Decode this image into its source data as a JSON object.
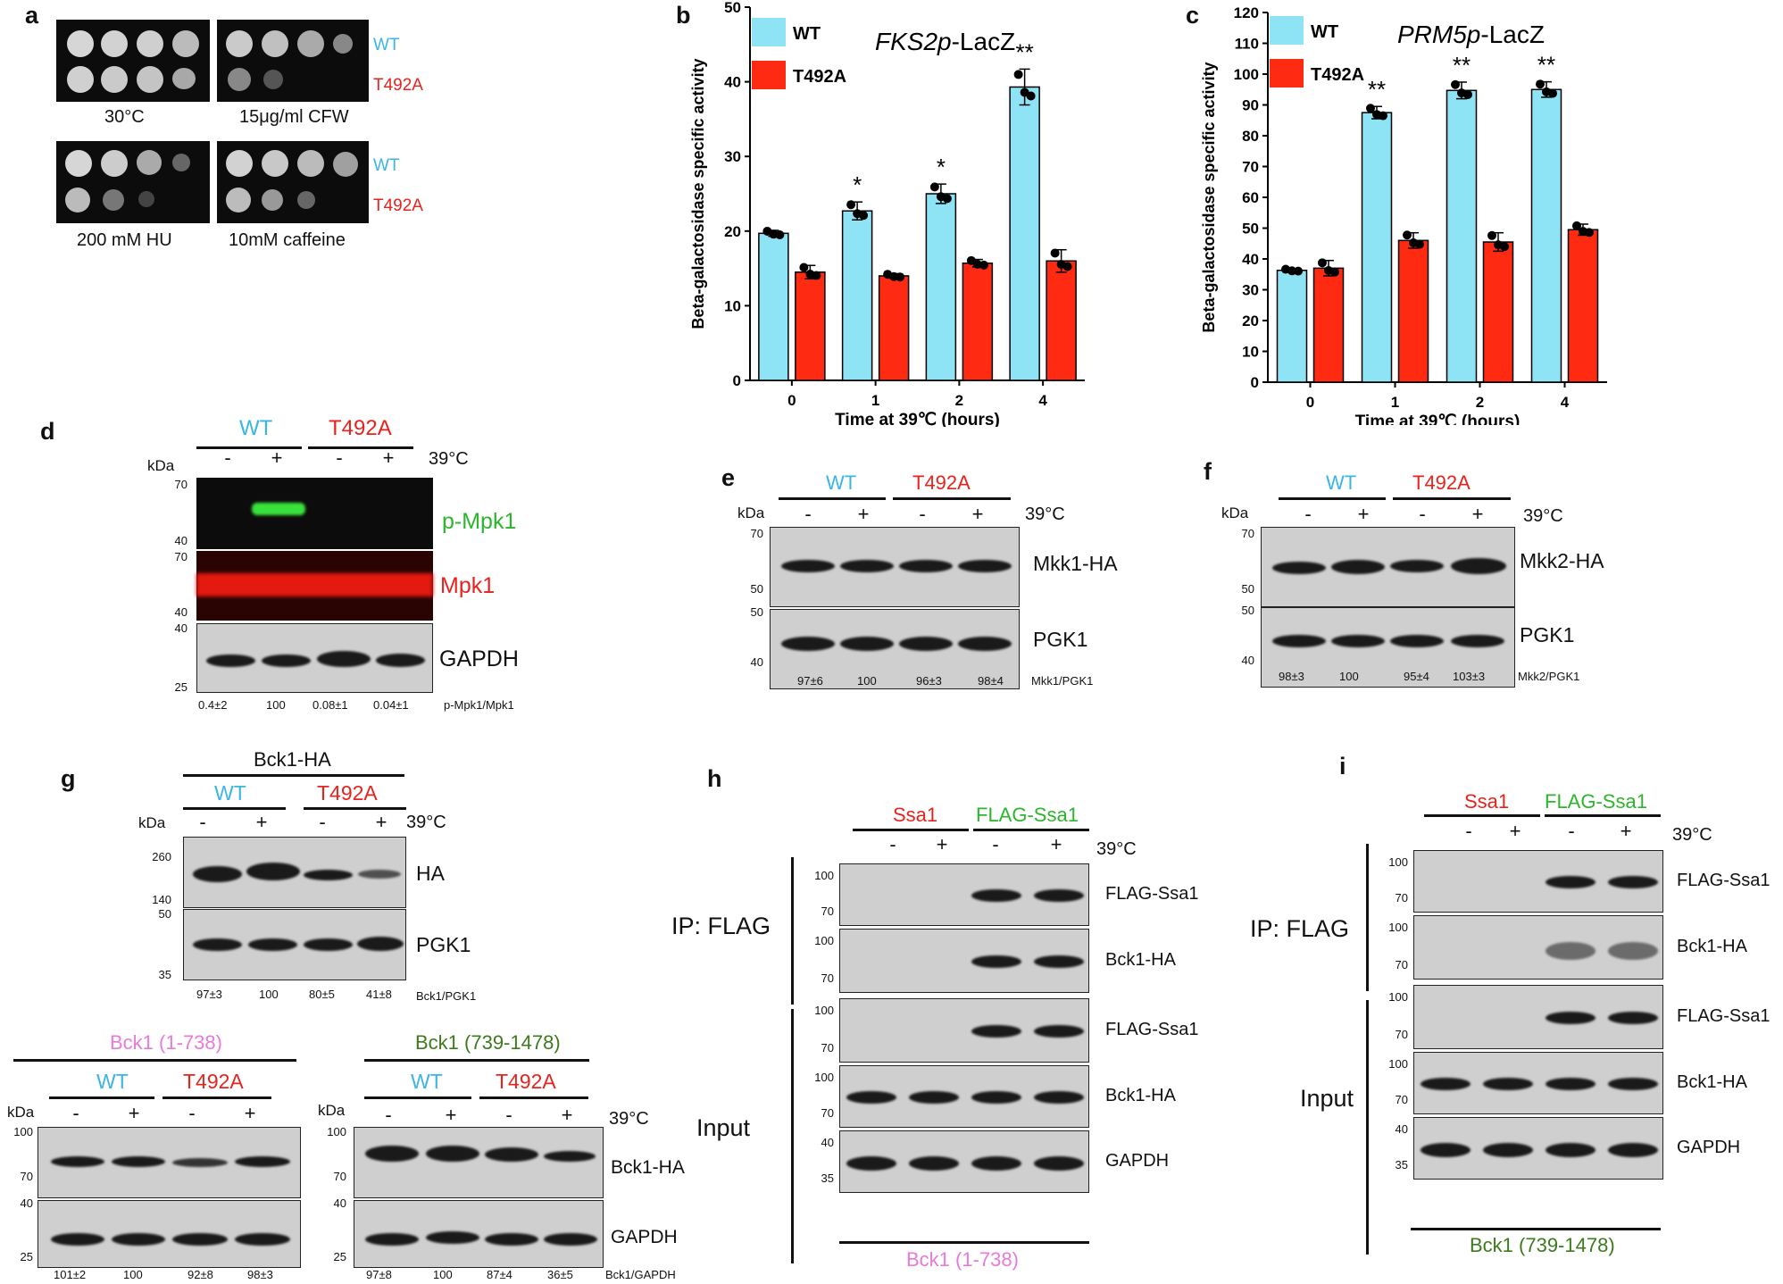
{
  "colors": {
    "wt": "#3ab5e6",
    "t492a": "#e8231e",
    "green": "#2db52d",
    "pink": "#e87ad8",
    "olive": "#3d7a1e",
    "barBlue": "#8ee3f5",
    "barRed": "#ff2a12"
  },
  "panel_a": {
    "label": "a",
    "wt": "WT",
    "t492a": "T492A",
    "conds": [
      "30°C",
      "15μg/ml CFW",
      "200 mM HU",
      "10mM caffeine"
    ]
  },
  "panel_d": {
    "label": "d",
    "wt": "WT",
    "t492a": "T492A",
    "temp": "39°C",
    "kda": "kDa",
    "signs": [
      "-",
      "+",
      "-",
      "+"
    ],
    "mk1": [
      "70",
      "40"
    ],
    "mk2": [
      "70",
      "40"
    ],
    "mk3": [
      "40",
      "25"
    ],
    "blots": [
      "p-Mpk1",
      "Mpk1",
      "GAPDH"
    ],
    "quant": [
      "0.4±2",
      "100",
      "0.08±1",
      "0.04±1"
    ],
    "quant_label": "p-Mpk1/Mpk1"
  },
  "panel_e": {
    "label": "e",
    "wt": "WT",
    "t492a": "T492A",
    "temp": "39°C",
    "kda": "kDa",
    "signs": [
      "-",
      "+",
      "-",
      "+"
    ],
    "mk1": [
      "70",
      "50"
    ],
    "mk2": [
      "50",
      "40"
    ],
    "blots": [
      "Mkk1-HA",
      "PGK1"
    ],
    "quant": [
      "97±6",
      "100",
      "96±3",
      "98±4"
    ],
    "quant_label": "Mkk1/PGK1"
  },
  "panel_f": {
    "label": "f",
    "wt": "WT",
    "t492a": "T492A",
    "temp": "39°C",
    "kda": "kDa",
    "signs": [
      "-",
      "+",
      "-",
      "+"
    ],
    "mk1": [
      "70",
      "50"
    ],
    "mk2": [
      "50",
      "40"
    ],
    "blots": [
      "Mkk2-HA",
      "PGK1"
    ],
    "quant": [
      "98±3",
      "100",
      "95±4",
      "103±3"
    ],
    "quant_label": "Mkk2/PGK1"
  },
  "panel_g": {
    "label": "g",
    "header": "Bck1-HA",
    "wt": "WT",
    "t492a": "T492A",
    "temp": "39°C",
    "kda": "kDa",
    "signs": [
      "-",
      "+",
      "-",
      "+"
    ],
    "mk1": [
      "260",
      "140"
    ],
    "mk2": [
      "50",
      "35"
    ],
    "blots": [
      "HA",
      "PGK1"
    ],
    "quant": [
      "97±3",
      "100",
      "80±5",
      "41±8"
    ],
    "quant_label": "Bck1/PGK1"
  },
  "panel_g2": {
    "header": "Bck1 (1-738)",
    "wt": "WT",
    "t492a": "T492A",
    "kda": "kDa",
    "signs": [
      "-",
      "+",
      "-",
      "+"
    ],
    "mk1": [
      "100",
      "70"
    ],
    "mk2": [
      "40",
      "25"
    ],
    "quant": [
      "101±2",
      "100",
      "92±8",
      "98±3"
    ]
  },
  "panel_g3": {
    "header": "Bck1 (739-1478)",
    "wt": "WT",
    "t492a": "T492A",
    "temp": "39°C",
    "kda": "kDa",
    "signs": [
      "-",
      "+",
      "-",
      "+"
    ],
    "mk1": [
      "100",
      "70"
    ],
    "mk2": [
      "40",
      "25"
    ],
    "blots": [
      "Bck1-HA",
      "GAPDH"
    ],
    "quant": [
      "97±8",
      "100",
      "87±4",
      "36±5"
    ],
    "quant_label": "Bck1/GAPDH"
  },
  "panel_h": {
    "label": "h",
    "ssa1": "Ssa1",
    "flag_ssa1": "FLAG-Ssa1",
    "temp": "39°C",
    "signs": [
      "-",
      "+",
      "-",
      "+"
    ],
    "ip": "IP: FLAG",
    "input": "Input",
    "footer": "Bck1 (1-738)",
    "blots": [
      "FLAG-Ssa1",
      "Bck1-HA",
      "FLAG-Ssa1",
      "Bck1-HA",
      "GAPDH"
    ],
    "mk": [
      [
        "100",
        "70"
      ],
      [
        "100",
        "70"
      ],
      [
        "100",
        "70"
      ],
      [
        "100",
        "70"
      ],
      [
        "40",
        "35"
      ]
    ]
  },
  "panel_i": {
    "label": "i",
    "ssa1": "Ssa1",
    "flag_ssa1": "FLAG-Ssa1",
    "temp": "39°C",
    "signs": [
      "-",
      "+",
      "-",
      "+"
    ],
    "ip": "IP: FLAG",
    "input": "Input",
    "footer": "Bck1 (739-1478)",
    "blots": [
      "FLAG-Ssa1",
      "Bck1-HA",
      "FLAG-Ssa1",
      "Bck1-HA",
      "GAPDH"
    ],
    "mk": [
      [
        "100",
        "70"
      ],
      [
        "100",
        "70"
      ],
      [
        "100",
        "70"
      ],
      [
        "100",
        "70"
      ],
      [
        "40",
        "35"
      ]
    ]
  },
  "chart_data": [
    {
      "type": "bar",
      "panel": "b",
      "title": "FKS2p-LacZ",
      "xlabel": "Time at 39℃ (hours)",
      "ylabel": "Beta-galactosidase specific activity",
      "categories": [
        "0",
        "1",
        "2",
        "4"
      ],
      "ylim": [
        0,
        50
      ],
      "yticks": [
        0,
        10,
        20,
        30,
        40,
        50
      ],
      "series": [
        {
          "name": "WT",
          "values": [
            19.7,
            22.7,
            25.0,
            39.3
          ],
          "errors": [
            0.4,
            1.2,
            1.3,
            2.4
          ]
        },
        {
          "name": "T492A",
          "values": [
            14.5,
            14.0,
            15.7,
            16.0
          ],
          "errors": [
            0.9,
            0.3,
            0.5,
            1.5
          ]
        }
      ],
      "annotations": [
        "",
        "*",
        "*",
        "**"
      ]
    },
    {
      "type": "bar",
      "panel": "c",
      "title": "PRM5p-LacZ",
      "xlabel": "Time at 39℃ (hours)",
      "ylabel": "Beta-galactosidase specific activity",
      "categories": [
        "0",
        "1",
        "2",
        "4"
      ],
      "ylim": [
        0,
        120
      ],
      "yticks": [
        0,
        10,
        20,
        30,
        40,
        50,
        60,
        70,
        80,
        90,
        100,
        110,
        120
      ],
      "series": [
        {
          "name": "WT",
          "values": [
            36.3,
            87.5,
            94.7,
            95.0
          ],
          "errors": [
            0.5,
            2.0,
            2.7,
            2.5
          ]
        },
        {
          "name": "T492A",
          "values": [
            37.0,
            46.0,
            45.5,
            49.5
          ],
          "errors": [
            2.5,
            2.5,
            3.0,
            1.8
          ]
        }
      ],
      "annotations": [
        "",
        "**",
        "**",
        "**"
      ]
    }
  ]
}
